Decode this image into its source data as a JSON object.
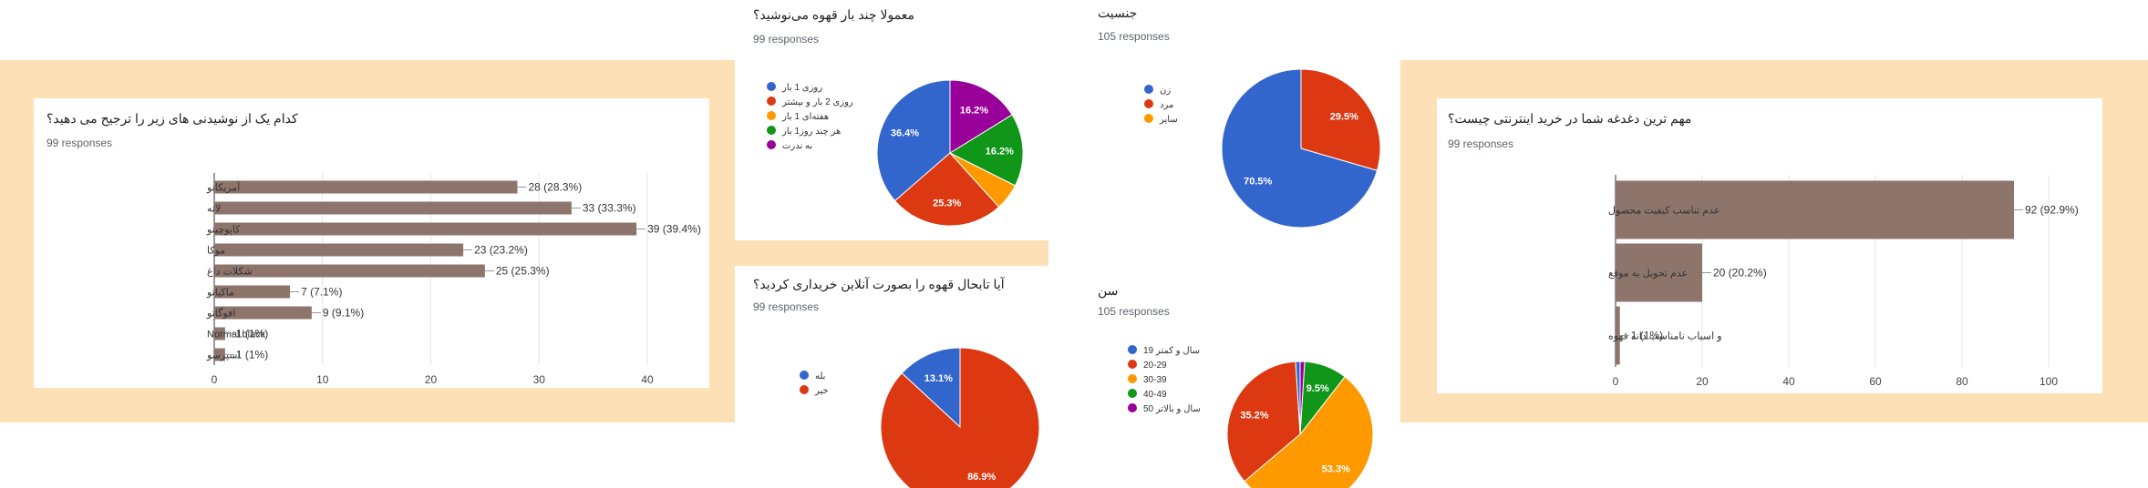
{
  "colors": {
    "band": "#fde0b5",
    "bar": "#8d756c",
    "pie": [
      "#3366cc",
      "#dc3912",
      "#ff9900",
      "#109618",
      "#990099"
    ]
  },
  "chart_data": [
    {
      "id": "fav_coffee",
      "type": "bar",
      "orientation": "horizontal",
      "title": "کدام یک از نوشیدنی های زیر را ترجیح می دهید؟",
      "responses": "99 responses",
      "categories": [
        "آمریکانو",
        "لاته",
        "کاپوچینو",
        "موکا",
        "شکلات داغ",
        "ماکیاتو",
        "افوگاتو",
        "Normal black",
        "اسپرسو"
      ],
      "values": [
        28,
        33,
        39,
        23,
        25,
        7,
        9,
        1,
        1
      ],
      "value_labels": [
        "28 (28.3%)",
        "33 (33.3%)",
        "39 (39.4%)",
        "23 (23.2%)",
        "25 (25.3%)",
        "7 (7.1%)",
        "9 (9.1%)",
        "1 (1%)",
        "1 (1%)"
      ],
      "xlim": [
        0,
        40
      ],
      "xticks": [
        "0",
        "10",
        "20",
        "30",
        "40"
      ],
      "grid": true
    },
    {
      "id": "frequency",
      "type": "pie",
      "title": "معمولا چند بار قهوه می‌نوشید؟",
      "responses": "99 responses",
      "labels": [
        "روزی 1 بار",
        "روزی 2 بار و بیشتر",
        "هفته‌ای 1 بار",
        "هر چند روز1 بار",
        "به ندرت"
      ],
      "values": [
        36.4,
        25.3,
        5.9,
        16.2,
        16.2
      ],
      "slice_labels": [
        "36.4%",
        "25.3%",
        "",
        "16.2%",
        "16.2%"
      ],
      "legend": "left"
    },
    {
      "id": "online_purchase",
      "type": "pie",
      "title": "آیا تابحال قهوه را بصورت آنلاین خریداری کردید؟",
      "responses": "99 responses",
      "labels": [
        "بله",
        "خیر"
      ],
      "values": [
        13.1,
        86.9
      ],
      "slice_labels": [
        "13.1%",
        "86.9%"
      ],
      "legend": "left"
    },
    {
      "id": "gender",
      "type": "pie",
      "title": "جنسیت",
      "responses": "105 responses",
      "labels": [
        "زن",
        "مرد",
        "سایر"
      ],
      "values": [
        70.5,
        29.5,
        0
      ],
      "slice_labels": [
        "70.5%",
        "29.5%",
        ""
      ],
      "legend": "left"
    },
    {
      "id": "age",
      "type": "pie",
      "title": "سن",
      "responses": "105 responses",
      "labels": [
        "19 سال و کمتر",
        "20-29",
        "30-39",
        "40-49",
        "50 سال و بالاتر"
      ],
      "values": [
        1.0,
        35.2,
        53.3,
        9.5,
        1.0
      ],
      "slice_labels": [
        "",
        "35.2%",
        "53.3%",
        "9.5%",
        ""
      ],
      "legend": "left"
    },
    {
      "id": "concern",
      "type": "bar",
      "orientation": "horizontal",
      "title": "مهم ترین دغدغه شما در خرید اینترنتی چیست؟",
      "responses": "99 responses",
      "categories": [
        "عدم تناسب کیفیت محصول",
        "عدم تحویل به موقع",
        "و اسیاب نامناسب دانه قهوه"
      ],
      "values": [
        92,
        20,
        1
      ],
      "value_labels": [
        "92 (92.9%)",
        "20 (20.2%)",
        "1 (1%)"
      ],
      "xlim": [
        0,
        100
      ],
      "xticks": [
        "0",
        "20",
        "40",
        "60",
        "80",
        "100"
      ],
      "grid": true
    }
  ]
}
